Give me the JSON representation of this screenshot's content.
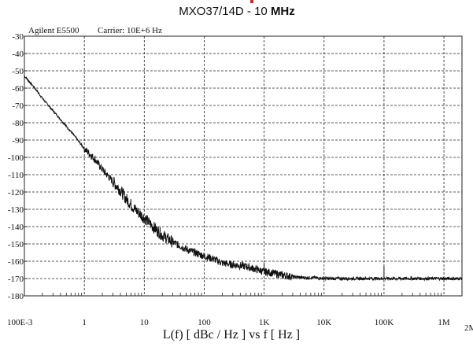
{
  "title": {
    "main": "MXO37/14D - 10 ",
    "unit": "MHz"
  },
  "annotations": {
    "instrument": "Agilent E5500",
    "carrier": "Carrier: 10E+6 Hz"
  },
  "colors": {
    "trace": "#111111",
    "grid": "#222222",
    "brand_red": "#d62828"
  },
  "chart_data": {
    "type": "line",
    "title": "MXO37/14D - 10 MHz",
    "xlabel": "L(f)  [ dBc / Hz ]  vs  f  [ Hz ]",
    "ylabel": "",
    "x_scale": "log",
    "xlim": [
      0.1,
      2000000
    ],
    "ylim": [
      -180,
      -30
    ],
    "grid": true,
    "grid_style": "dashed",
    "x_ticks": [
      {
        "value": 0.1,
        "label": "100E-3"
      },
      {
        "value": 1,
        "label": "1"
      },
      {
        "value": 10,
        "label": "10"
      },
      {
        "value": 100,
        "label": "100"
      },
      {
        "value": 1000,
        "label": "1K"
      },
      {
        "value": 10000,
        "label": "10K"
      },
      {
        "value": 100000,
        "label": "100K"
      },
      {
        "value": 1000000,
        "label": "1M"
      },
      {
        "value": 2000000,
        "label": "2M"
      }
    ],
    "y_ticks": [
      -30,
      -40,
      -50,
      -60,
      -70,
      -80,
      -90,
      -100,
      -110,
      -120,
      -130,
      -140,
      -150,
      -160,
      -170,
      -180
    ],
    "series": [
      {
        "x": [
          0.1,
          0.15,
          0.2,
          0.3,
          0.4,
          0.5,
          0.7,
          1,
          1.5,
          2,
          3,
          4,
          5,
          7,
          10,
          15,
          20,
          30,
          50,
          70,
          100,
          150,
          200,
          300,
          500,
          700,
          1000,
          1500,
          2000,
          3000,
          5000,
          7000,
          10000,
          20000,
          50000,
          100000,
          200000,
          500000,
          1000000,
          2000000
        ],
        "y": [
          -53,
          -60,
          -66,
          -73,
          -78,
          -82,
          -88,
          -95,
          -101,
          -107,
          -114,
          -119,
          -124,
          -130,
          -135,
          -141,
          -145,
          -149,
          -153,
          -155,
          -157,
          -159,
          -161,
          -162,
          -163,
          -164.5,
          -166,
          -167,
          -168,
          -169,
          -169.5,
          -169.5,
          -170,
          -170,
          -170,
          -170,
          -170,
          -170,
          -170,
          -170
        ]
      }
    ],
    "spurs": [
      {
        "x": 1000,
        "y": -161
      },
      {
        "x": 100000,
        "y": -163
      }
    ]
  }
}
